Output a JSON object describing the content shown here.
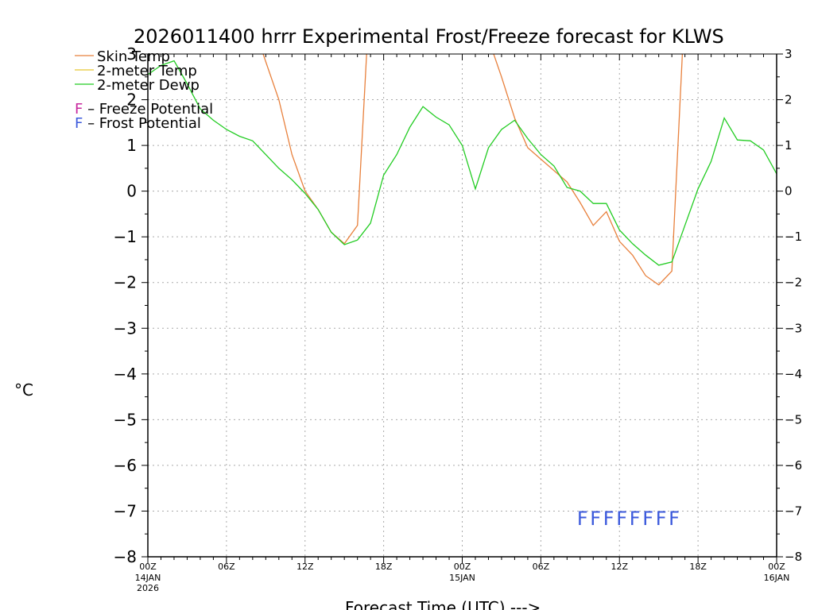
{
  "chart_data": {
    "type": "line",
    "title": "2026011400 hrrr Experimental Frost/Freeze forecast for KLWS",
    "ylabel": "°C",
    "xlabel": "Forecast Time (UTC) --->",
    "ylim": [
      -8,
      3
    ],
    "xlim": [
      0,
      48
    ],
    "y_ticks": [
      -8,
      -7,
      -6,
      -5,
      -4,
      -3,
      -2,
      -1,
      0,
      1,
      2,
      3
    ],
    "y_tick_labels": [
      "−8",
      "−7",
      "−6",
      "−5",
      "−4",
      "−3",
      "−2",
      "−1",
      "0",
      "1",
      "2",
      "3"
    ],
    "x_ticks": [
      {
        "hour": 0,
        "label": "00Z",
        "sub": [
          "14JAN",
          "2026"
        ]
      },
      {
        "hour": 6,
        "label": "06Z",
        "sub": []
      },
      {
        "hour": 12,
        "label": "12Z",
        "sub": []
      },
      {
        "hour": 18,
        "label": "18Z",
        "sub": []
      },
      {
        "hour": 24,
        "label": "00Z",
        "sub": [
          "15JAN"
        ]
      },
      {
        "hour": 30,
        "label": "06Z",
        "sub": []
      },
      {
        "hour": 36,
        "label": "12Z",
        "sub": []
      },
      {
        "hour": 42,
        "label": "18Z",
        "sub": []
      },
      {
        "hour": 48,
        "label": "00Z",
        "sub": [
          "16JAN"
        ]
      }
    ],
    "grid": true,
    "legend": [
      {
        "label": "Skin Temp",
        "color": "#e8803c"
      },
      {
        "label": "2-meter Temp",
        "color": "#e8c830"
      },
      {
        "label": "2-meter Dewp",
        "color": "#22cc22"
      }
    ],
    "potential_legend": [
      {
        "marker": "F",
        "text": " – Freeze Potential",
        "color": "#c8289e"
      },
      {
        "marker": "F",
        "text": " – Frost Potential",
        "color": "#3c5adc"
      }
    ],
    "series": [
      {
        "name": "Skin Temp",
        "color": "#e8803c",
        "x": [
          8.8,
          10,
          11,
          12,
          13,
          14,
          15,
          16,
          16.7
        ],
        "y": [
          3.0,
          2.0,
          0.8,
          0.0,
          -0.4,
          -0.9,
          -1.15,
          -0.75,
          3.0
        ]
      },
      {
        "name": "Skin Temp",
        "color": "#e8803c",
        "x": [
          26.4,
          27,
          28,
          29,
          30,
          31,
          32,
          33,
          34,
          35,
          36,
          37,
          38,
          39,
          40,
          40.8
        ],
        "y": [
          3.0,
          2.5,
          1.6,
          0.95,
          0.7,
          0.45,
          0.2,
          -0.25,
          -0.75,
          -0.45,
          -1.1,
          -1.4,
          -1.85,
          -2.05,
          -1.75,
          3.0
        ]
      },
      {
        "name": "2-meter Dewp",
        "color": "#22cc22",
        "x": [
          0,
          1,
          2,
          3,
          4,
          5,
          6,
          7,
          8,
          9,
          10,
          11,
          12,
          13,
          14,
          15,
          16,
          17,
          18,
          19,
          20,
          21,
          22,
          23,
          24,
          25,
          26,
          27,
          28,
          29,
          30,
          31,
          32,
          33,
          34,
          35,
          36,
          37,
          38,
          39,
          40,
          41,
          42,
          43,
          44,
          45,
          46,
          47,
          48
        ],
        "y": [
          2.55,
          2.75,
          2.85,
          2.35,
          1.8,
          1.55,
          1.35,
          1.2,
          1.1,
          0.8,
          0.5,
          0.25,
          -0.05,
          -0.4,
          -0.9,
          -1.17,
          -1.07,
          -0.7,
          0.35,
          0.8,
          1.4,
          1.85,
          1.62,
          1.45,
          1.0,
          0.05,
          0.95,
          1.35,
          1.55,
          1.15,
          0.8,
          0.55,
          0.08,
          0.0,
          -0.27,
          -0.27,
          -0.85,
          -1.15,
          -1.4,
          -1.62,
          -1.55,
          -0.75,
          0.05,
          0.65,
          1.6,
          1.12,
          1.1,
          0.9,
          0.38
        ]
      }
    ],
    "frost_marks": {
      "label": "F",
      "color": "#3c5adc",
      "y": -7.15,
      "hours": [
        33,
        34,
        35,
        36,
        37,
        38,
        39,
        40
      ]
    }
  }
}
